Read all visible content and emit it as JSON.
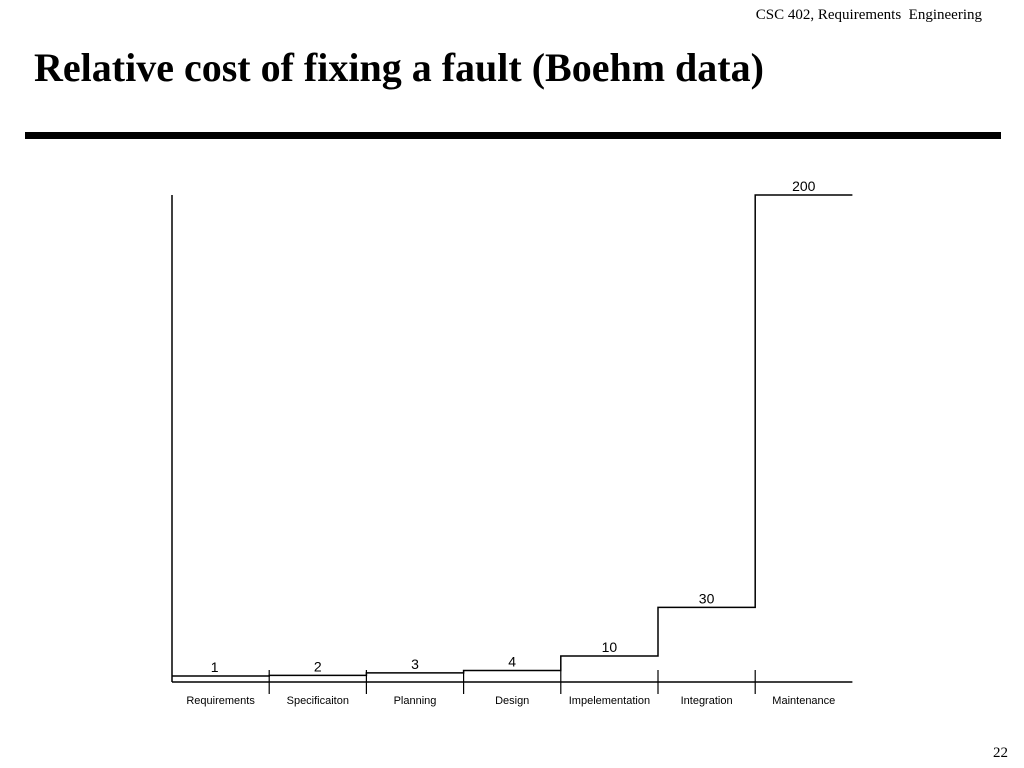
{
  "header": {
    "course": "CSC 402, Requirements  Engineering",
    "title": "Relative cost of fixing a fault (Boehm data)"
  },
  "chart_data": {
    "type": "step",
    "title": "",
    "xlabel": "",
    "ylabel": "",
    "categories": [
      "Requirements",
      "Specificaiton",
      "Planning",
      "Design",
      "Impelementation",
      "Integration",
      "Maintenance"
    ],
    "values": [
      1,
      2,
      3,
      4,
      10,
      30,
      200
    ],
    "value_labels": [
      "1",
      "2",
      "3",
      "4",
      "10",
      "30",
      "200"
    ],
    "ylim": [
      0,
      200
    ],
    "grid": false,
    "legend": "none",
    "line_color": "#000000"
  },
  "footer": {
    "page_number": "22"
  }
}
